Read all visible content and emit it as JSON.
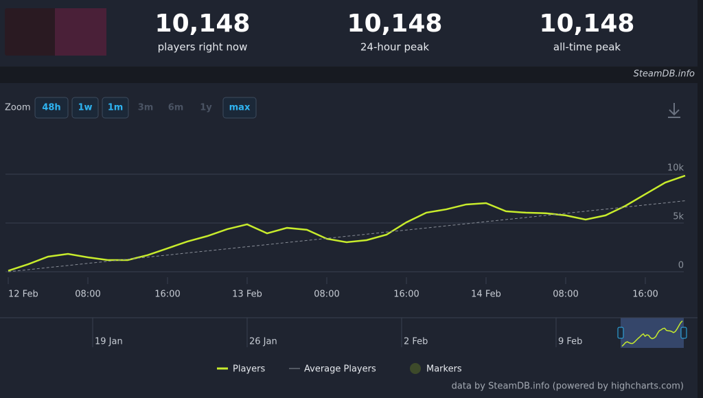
{
  "header": {
    "stats": [
      {
        "value": "10,148",
        "label": "players right now"
      },
      {
        "value": "10,148",
        "label": "24-hour peak"
      },
      {
        "value": "10,148",
        "label": "all-time peak"
      }
    ],
    "watermark": "SteamDB.info"
  },
  "zoom": {
    "label": "Zoom",
    "buttons": [
      {
        "label": "48h",
        "active": true
      },
      {
        "label": "1w",
        "active": true
      },
      {
        "label": "1m",
        "active": true
      },
      {
        "label": "3m",
        "active": false
      },
      {
        "label": "6m",
        "active": false
      },
      {
        "label": "1y",
        "active": false
      },
      {
        "label": "max",
        "active": true
      }
    ]
  },
  "chart_data": {
    "type": "line",
    "x": [
      "12 Feb 00:00",
      "12 Feb 02:00",
      "12 Feb 04:00",
      "12 Feb 06:00",
      "12 Feb 08:00",
      "12 Feb 10:00",
      "12 Feb 12:00",
      "12 Feb 14:00",
      "12 Feb 16:00",
      "12 Feb 18:00",
      "12 Feb 20:00",
      "12 Feb 22:00",
      "13 Feb 00:00",
      "13 Feb 02:00",
      "13 Feb 04:00",
      "13 Feb 06:00",
      "13 Feb 08:00",
      "13 Feb 10:00",
      "13 Feb 12:00",
      "13 Feb 14:00",
      "13 Feb 16:00",
      "13 Feb 18:00",
      "13 Feb 20:00",
      "13 Feb 22:00",
      "14 Feb 00:00",
      "14 Feb 02:00",
      "14 Feb 04:00",
      "14 Feb 06:00",
      "14 Feb 08:00",
      "14 Feb 10:00",
      "14 Feb 12:00",
      "14 Feb 14:00",
      "14 Feb 16:00",
      "14 Feb 18:00",
      "14 Feb 20:00"
    ],
    "series": [
      {
        "name": "Players",
        "color": "#c8ec2c",
        "values": [
          100,
          770,
          1550,
          1830,
          1480,
          1200,
          1200,
          1700,
          2400,
          3100,
          3660,
          4370,
          4860,
          3940,
          4500,
          4300,
          3380,
          3030,
          3240,
          3800,
          5070,
          6060,
          6400,
          6900,
          7040,
          6200,
          6060,
          6000,
          5780,
          5350,
          5780,
          6760,
          7960,
          9150,
          9860
        ]
      },
      {
        "name": "Average Players",
        "color": "#8a8f99",
        "values": [
          0,
          210,
          430,
          640,
          860,
          1070,
          1280,
          1500,
          1710,
          1930,
          2140,
          2350,
          2570,
          2780,
          3000,
          3210,
          3420,
          3640,
          3850,
          4070,
          4280,
          4490,
          4710,
          4920,
          5140,
          5350,
          5560,
          5780,
          5990,
          6210,
          6420,
          6630,
          6850,
          7060,
          7280
        ]
      }
    ],
    "markers_label": "Markers",
    "ylim": [
      0,
      14500
    ],
    "yticks": [
      0,
      {
        "value": 5000,
        "label": "5k"
      },
      {
        "value": 10000,
        "label": "10k"
      }
    ],
    "xticks": [
      {
        "value": "12 Feb 00:00",
        "label": "12 Feb"
      },
      {
        "value": "12 Feb 08:00",
        "label": "08:00"
      },
      {
        "value": "12 Feb 16:00",
        "label": "16:00"
      },
      {
        "value": "13 Feb 00:00",
        "label": "13 Feb"
      },
      {
        "value": "13 Feb 08:00",
        "label": "08:00"
      },
      {
        "value": "13 Feb 16:00",
        "label": "16:00"
      },
      {
        "value": "14 Feb 00:00",
        "label": "14 Feb"
      },
      {
        "value": "14 Feb 08:00",
        "label": "08:00"
      },
      {
        "value": "14 Feb 16:00",
        "label": "16:00"
      }
    ],
    "grid": true,
    "navigator_labels": [
      "19 Jan",
      "26 Jan",
      "2 Feb",
      "9 Feb"
    ]
  },
  "footer": "data by SteamDB.info (powered by highcharts.com)"
}
